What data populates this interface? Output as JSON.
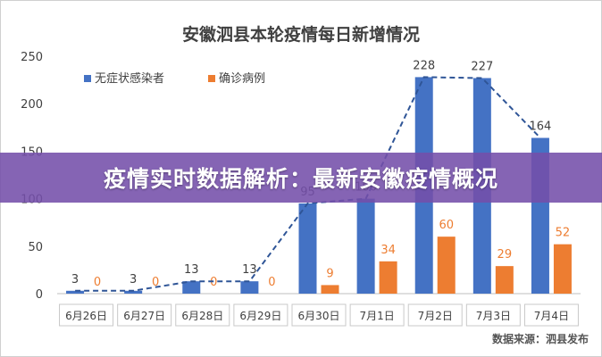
{
  "banner": {
    "text": "疫情实时数据解析：最新安徽疫情概况"
  },
  "chart_data": {
    "type": "bar",
    "title": "安徽泗县本轮疫情每日新增情况",
    "source": "数据来源：泗县发布",
    "categories": [
      "6月26日",
      "6月27日",
      "6月28日",
      "6月29日",
      "6月30日",
      "7月1日",
      "7月2日",
      "7月3日",
      "7月4日"
    ],
    "series": [
      {
        "name": "无症状感染者",
        "color": "#4472c4",
        "values": [
          3,
          3,
          13,
          13,
          95,
          100,
          228,
          227,
          164
        ]
      },
      {
        "name": "确诊病例",
        "color": "#ed7d31",
        "values": [
          0,
          0,
          0,
          0,
          9,
          34,
          60,
          29,
          52
        ]
      }
    ],
    "trendline": {
      "style": "dashed",
      "color": "#2f5597",
      "of_series": "无症状感染者"
    },
    "yticks": [
      0,
      50,
      100,
      150,
      200,
      250
    ],
    "ylim": [
      0,
      250
    ],
    "legend": "top-left",
    "grid": false
  }
}
